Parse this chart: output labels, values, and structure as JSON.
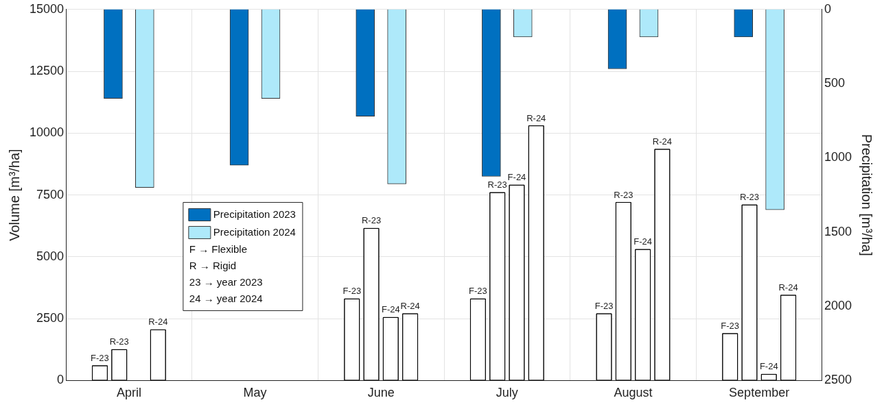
{
  "chart_data": {
    "type": "bar",
    "categories": [
      "April",
      "May",
      "June",
      "July",
      "August",
      "September"
    ],
    "ylabel": "Volume [m³/ha]",
    "y2label": "Precipitation [m³/ha]",
    "ylim": [
      0,
      15000
    ],
    "yticks": [
      0,
      2500,
      5000,
      7500,
      10000,
      12500,
      15000
    ],
    "y2lim": [
      2500,
      0
    ],
    "y2ticks": [
      0,
      500,
      1000,
      1500,
      2000,
      2500
    ],
    "grid": true,
    "legend": "center left",
    "annotations": [
      "F → Flexible",
      "R → Rigid",
      "23 → year 2023",
      "24 → year 2024"
    ],
    "series": [
      {
        "name": "Precipitation 2023",
        "color": "#0070c0",
        "axis": "y2",
        "values": [
          600,
          1050,
          720,
          1125,
          400,
          185
        ]
      },
      {
        "name": "Precipitation 2024",
        "color": "#aee9fa",
        "axis": "y2",
        "values": [
          1200,
          600,
          1175,
          185,
          185,
          1350
        ]
      },
      {
        "name": "F-23",
        "color": "#ffffff",
        "values": [
          600,
          null,
          3300,
          3300,
          2700,
          1900
        ]
      },
      {
        "name": "R-23",
        "color": "#ffffff",
        "values": [
          1250,
          null,
          6150,
          7600,
          7200,
          7100
        ]
      },
      {
        "name": "F-24",
        "color": "#ffffff",
        "values": [
          null,
          null,
          2550,
          7900,
          5300,
          250
        ]
      },
      {
        "name": "R-24",
        "color": "#ffffff",
        "values": [
          2050,
          null,
          2700,
          10300,
          9350,
          3450
        ]
      }
    ]
  }
}
